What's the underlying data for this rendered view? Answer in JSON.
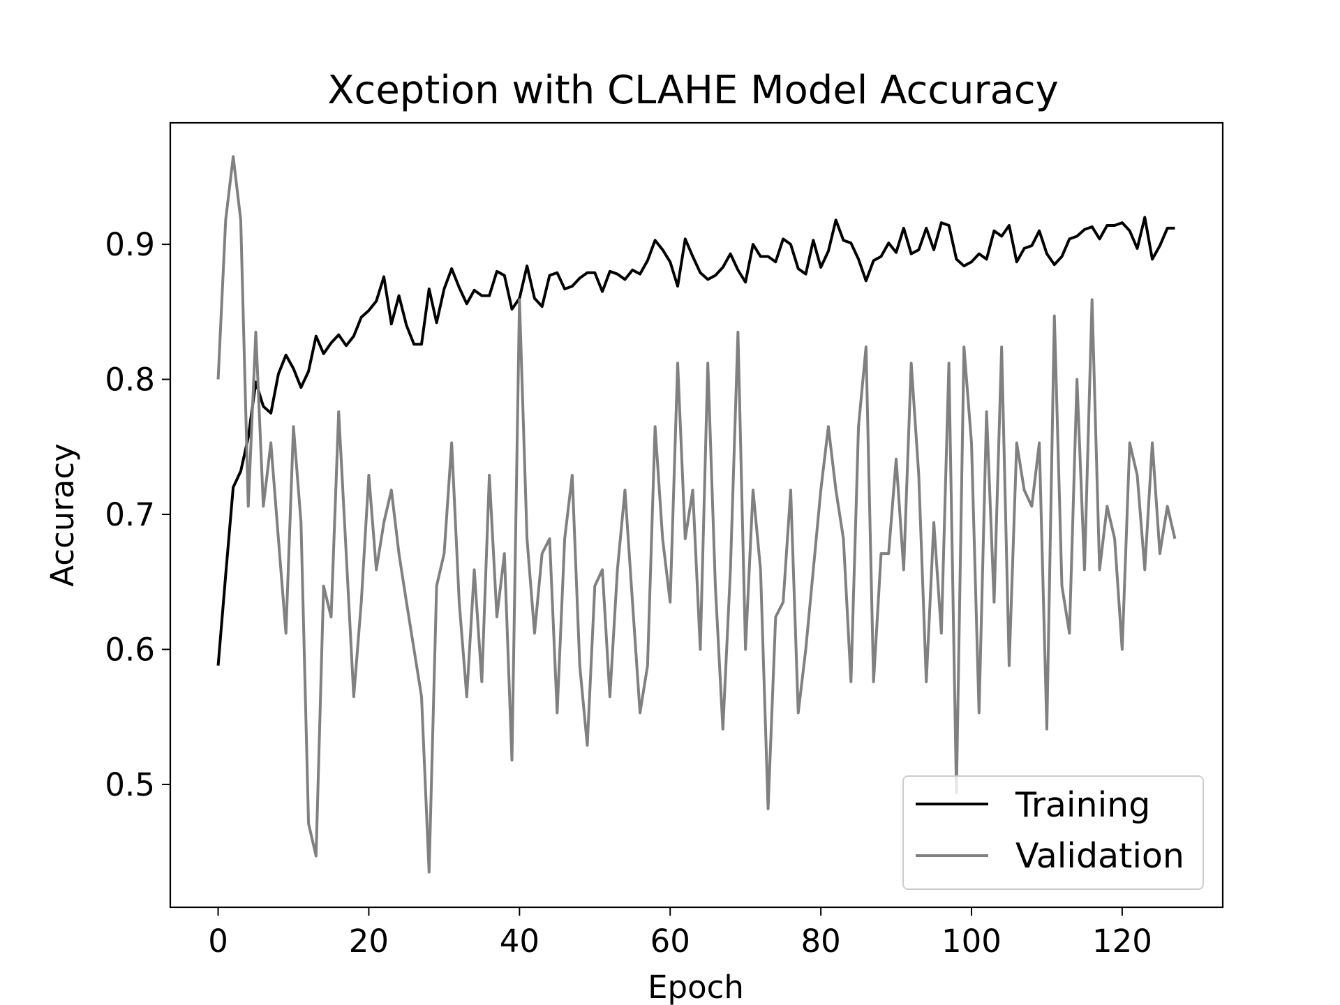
{
  "chart_data": {
    "type": "line",
    "title": "Xception with CLAHE Model Accuracy",
    "xlabel": "Epoch",
    "ylabel": "Accuracy",
    "xlim": [
      -6.35,
      133.35
    ],
    "ylim": [
      0.409,
      0.99
    ],
    "xticks": [
      0,
      20,
      40,
      60,
      80,
      100,
      120
    ],
    "yticks": [
      0.5,
      0.6,
      0.7,
      0.8,
      0.9
    ],
    "ytick_labels": [
      "0.5",
      "0.6",
      "0.7",
      "0.8",
      "0.9"
    ],
    "grid": false,
    "legend_position": "lower right",
    "series": [
      {
        "name": "Training",
        "color": "#000000",
        "x": [
          0,
          1,
          2,
          3,
          4,
          5,
          6,
          7,
          8,
          9,
          10,
          11,
          12,
          13,
          14,
          15,
          16,
          17,
          18,
          19,
          20,
          21,
          22,
          23,
          24,
          25,
          26,
          27,
          28,
          29,
          30,
          31,
          32,
          33,
          34,
          35,
          36,
          37,
          38,
          39,
          40,
          41,
          42,
          43,
          44,
          45,
          46,
          47,
          48,
          49,
          50,
          51,
          52,
          53,
          54,
          55,
          56,
          57,
          58,
          59,
          60,
          61,
          62,
          63,
          64,
          65,
          66,
          67,
          68,
          69,
          70,
          71,
          72,
          73,
          74,
          75,
          76,
          77,
          78,
          79,
          80,
          81,
          82,
          83,
          84,
          85,
          86,
          87,
          88,
          89,
          90,
          91,
          92,
          93,
          94,
          95,
          96,
          97,
          98,
          99,
          100,
          101,
          102,
          103,
          104,
          105,
          106,
          107,
          108,
          109,
          110,
          111,
          112,
          113,
          114,
          115,
          116,
          117,
          118,
          119,
          120,
          121,
          122,
          123,
          124,
          125,
          126,
          127
        ],
        "values": [
          0.588,
          0.655,
          0.72,
          0.732,
          0.757,
          0.798,
          0.78,
          0.775,
          0.804,
          0.818,
          0.808,
          0.794,
          0.806,
          0.832,
          0.819,
          0.827,
          0.833,
          0.825,
          0.832,
          0.846,
          0.851,
          0.858,
          0.876,
          0.841,
          0.862,
          0.84,
          0.826,
          0.826,
          0.867,
          0.842,
          0.867,
          0.882,
          0.868,
          0.856,
          0.866,
          0.862,
          0.862,
          0.88,
          0.877,
          0.852,
          0.86,
          0.884,
          0.86,
          0.854,
          0.877,
          0.879,
          0.867,
          0.869,
          0.875,
          0.879,
          0.879,
          0.865,
          0.88,
          0.878,
          0.874,
          0.881,
          0.878,
          0.888,
          0.903,
          0.896,
          0.887,
          0.869,
          0.904,
          0.891,
          0.879,
          0.874,
          0.877,
          0.883,
          0.893,
          0.881,
          0.872,
          0.9,
          0.891,
          0.891,
          0.887,
          0.904,
          0.9,
          0.882,
          0.878,
          0.903,
          0.883,
          0.895,
          0.918,
          0.903,
          0.901,
          0.889,
          0.873,
          0.888,
          0.891,
          0.901,
          0.894,
          0.912,
          0.893,
          0.896,
          0.912,
          0.896,
          0.916,
          0.914,
          0.889,
          0.884,
          0.887,
          0.893,
          0.889,
          0.91,
          0.906,
          0.914,
          0.887,
          0.897,
          0.899,
          0.91,
          0.893,
          0.885,
          0.891,
          0.904,
          0.906,
          0.911,
          0.913,
          0.904,
          0.914,
          0.914,
          0.916,
          0.91,
          0.897,
          0.92,
          0.889,
          0.899,
          0.912,
          0.912
        ]
      },
      {
        "name": "Validation",
        "color": "#808080",
        "x": [
          0,
          1,
          2,
          3,
          4,
          5,
          6,
          7,
          8,
          9,
          10,
          11,
          12,
          13,
          14,
          15,
          16,
          17,
          18,
          19,
          20,
          21,
          22,
          23,
          24,
          25,
          26,
          27,
          28,
          29,
          30,
          31,
          32,
          33,
          34,
          35,
          36,
          37,
          38,
          39,
          40,
          41,
          42,
          43,
          44,
          45,
          46,
          47,
          48,
          49,
          50,
          51,
          52,
          53,
          54,
          55,
          56,
          57,
          58,
          59,
          60,
          61,
          62,
          63,
          64,
          65,
          66,
          67,
          68,
          69,
          70,
          71,
          72,
          73,
          74,
          75,
          76,
          77,
          78,
          79,
          80,
          81,
          82,
          83,
          84,
          85,
          86,
          87,
          88,
          89,
          90,
          91,
          92,
          93,
          94,
          95,
          96,
          97,
          98,
          99,
          100,
          101,
          102,
          103,
          104,
          105,
          106,
          107,
          108,
          109,
          110,
          111,
          112,
          113,
          114,
          115,
          116,
          117,
          118,
          119,
          120,
          121,
          122,
          123,
          124,
          125,
          126,
          127
        ],
        "values": [
          0.8,
          0.918,
          0.965,
          0.918,
          0.706,
          0.835,
          0.706,
          0.753,
          0.682,
          0.612,
          0.765,
          0.694,
          0.471,
          0.447,
          0.647,
          0.624,
          0.776,
          0.671,
          0.565,
          0.635,
          0.729,
          0.659,
          0.694,
          0.718,
          0.671,
          0.635,
          0.6,
          0.565,
          0.435,
          0.647,
          0.671,
          0.753,
          0.635,
          0.565,
          0.659,
          0.576,
          0.729,
          0.624,
          0.671,
          0.518,
          0.859,
          0.682,
          0.612,
          0.671,
          0.682,
          0.553,
          0.682,
          0.729,
          0.588,
          0.529,
          0.647,
          0.659,
          0.565,
          0.659,
          0.718,
          0.635,
          0.553,
          0.588,
          0.765,
          0.682,
          0.635,
          0.812,
          0.682,
          0.718,
          0.6,
          0.812,
          0.647,
          0.541,
          0.659,
          0.835,
          0.6,
          0.718,
          0.659,
          0.482,
          0.624,
          0.635,
          0.718,
          0.553,
          0.6,
          0.659,
          0.718,
          0.765,
          0.718,
          0.682,
          0.576,
          0.765,
          0.824,
          0.576,
          0.671,
          0.671,
          0.741,
          0.659,
          0.812,
          0.729,
          0.576,
          0.694,
          0.612,
          0.812,
          0.494,
          0.824,
          0.753,
          0.553,
          0.776,
          0.635,
          0.824,
          0.588,
          0.753,
          0.718,
          0.706,
          0.753,
          0.541,
          0.847,
          0.647,
          0.612,
          0.8,
          0.659,
          0.859,
          0.659,
          0.706,
          0.682,
          0.6,
          0.753,
          0.729,
          0.659,
          0.753,
          0.671,
          0.706,
          0.682
        ]
      }
    ]
  }
}
